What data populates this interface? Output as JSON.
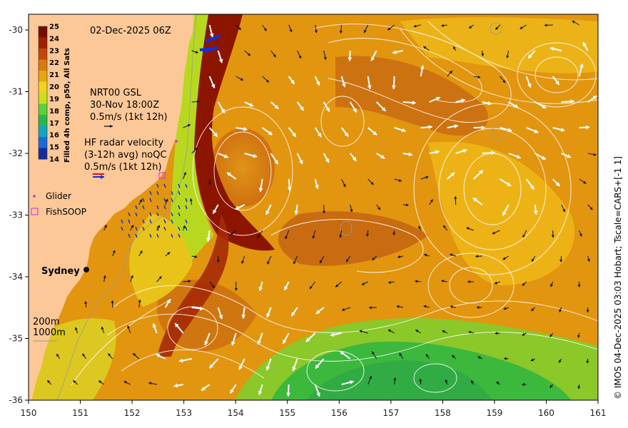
{
  "map": {
    "timestamp": "02-Dec-2025 06Z",
    "colorbar_title": "Filled 4h comp, p50, All Sats",
    "colorbar_ticks": [
      "25",
      "24",
      "23",
      "22",
      "21",
      "20",
      "19",
      "18",
      "17",
      "16",
      "15",
      "14"
    ],
    "colorbar_colors": [
      "#7a0a00",
      "#a12000",
      "#c2470a",
      "#d97a10",
      "#e6a80e",
      "#f2d21c",
      "#c8df1c",
      "#5cd03c",
      "#26b84c",
      "#12a6c2",
      "#1a6ad8",
      "#162c9c"
    ],
    "land_color": "#fcc898",
    "nrt_label_lines": [
      "NRT00 GSL",
      "30-Nov 18:00Z",
      "0.5m/s (1kt 12h)"
    ],
    "hf_label_lines": [
      "HF radar velocity",
      "(3-12h avg) noQC",
      "0.5m/s (1kt 12h)"
    ],
    "legend": {
      "glider": "Glider",
      "fishsoop": "FishSOOP"
    },
    "city": "Sydney",
    "depth_labels": [
      "200m",
      "1000m"
    ],
    "x_ticks": [
      "150",
      "151",
      "152",
      "153",
      "154",
      "155",
      "156",
      "157",
      "158",
      "159",
      "160",
      "161"
    ],
    "y_ticks": [
      "-30",
      "-31",
      "-32",
      "-33",
      "-34",
      "-35",
      "-36"
    ],
    "lon_range": [
      150,
      161
    ],
    "lat_range": [
      -36,
      -30
    ],
    "credit": "© IMOS 04-Dec-2025 03:03 Hobart; Tscale=CARS+[-1 1]"
  }
}
